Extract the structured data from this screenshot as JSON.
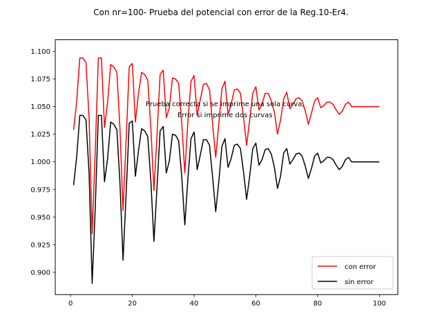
{
  "chart_data": {
    "type": "line",
    "title": "Con nr=100- Prueba del potencial con error de la Reg.10-Er4.",
    "xlabel": "",
    "ylabel": "",
    "xlim": [
      -4.95,
      105.95
    ],
    "ylim": [
      0.8799,
      1.1105
    ],
    "x_ticks": [
      0,
      20,
      40,
      60,
      80,
      100
    ],
    "y_ticks": [
      0.9,
      0.925,
      0.95,
      0.975,
      1.0,
      1.025,
      1.05,
      1.075,
      1.1
    ],
    "grid": false,
    "legend_position": "lower-right",
    "annotations": [
      {
        "text": "Prueba correcta si se imprime una sola curva,",
        "x": 50,
        "y": 1.0505
      },
      {
        "text": "Error si imprime dos curvas",
        "x": 50,
        "y": 1.0405
      }
    ],
    "x": [
      1,
      2,
      3,
      4,
      5,
      6,
      7,
      8,
      9,
      10,
      11,
      12,
      13,
      14,
      15,
      16,
      17,
      18,
      19,
      20,
      21,
      22,
      23,
      24,
      25,
      26,
      27,
      28,
      29,
      30,
      31,
      32,
      33,
      34,
      35,
      36,
      37,
      38,
      39,
      40,
      41,
      42,
      43,
      44,
      45,
      46,
      47,
      48,
      49,
      50,
      51,
      52,
      53,
      54,
      55,
      56,
      57,
      58,
      59,
      60,
      61,
      62,
      63,
      64,
      65,
      66,
      67,
      68,
      69,
      70,
      71,
      72,
      73,
      74,
      75,
      76,
      77,
      78,
      79,
      80,
      81,
      82,
      83,
      84,
      85,
      86,
      87,
      88,
      89,
      90,
      91,
      92,
      93,
      94,
      95,
      96,
      97,
      98,
      99,
      100
    ],
    "series": [
      {
        "name": "con error",
        "color": "#ff0000",
        "values": [
          1.029,
          1.055,
          1.094,
          1.094,
          1.09,
          1.04,
          0.935,
          1.01,
          1.094,
          1.094,
          1.031,
          1.054,
          1.088,
          1.086,
          1.081,
          1.03,
          0.956,
          1.02,
          1.086,
          1.089,
          1.036,
          1.062,
          1.081,
          1.079,
          1.074,
          1.031,
          0.974,
          1.024,
          1.079,
          1.083,
          1.04,
          1.049,
          1.076,
          1.075,
          1.071,
          1.035,
          0.99,
          1.037,
          1.073,
          1.078,
          1.042,
          1.056,
          1.07,
          1.071,
          1.065,
          1.034,
          1.004,
          1.034,
          1.066,
          1.073,
          1.043,
          1.052,
          1.065,
          1.066,
          1.062,
          1.04,
          1.015,
          1.038,
          1.062,
          1.068,
          1.047,
          1.052,
          1.062,
          1.062,
          1.055,
          1.045,
          1.025,
          1.038,
          1.057,
          1.063,
          1.048,
          1.052,
          1.057,
          1.058,
          1.055,
          1.046,
          1.034,
          1.044,
          1.055,
          1.058,
          1.049,
          1.051,
          1.054,
          1.054,
          1.052,
          1.047,
          1.043,
          1.046,
          1.052,
          1.054,
          1.05,
          1.05,
          1.05,
          1.05,
          1.05,
          1.05,
          1.05,
          1.05,
          1.05,
          1.05
        ]
      },
      {
        "name": "sin error",
        "color": "#000000",
        "values": [
          0.979,
          1.005,
          1.042,
          1.042,
          1.038,
          0.99,
          0.89,
          0.958,
          1.042,
          1.042,
          0.982,
          1.003,
          1.036,
          1.034,
          1.029,
          0.981,
          0.911,
          0.971,
          1.035,
          1.037,
          0.987,
          1.01,
          1.03,
          1.028,
          1.023,
          0.983,
          0.928,
          0.977,
          1.028,
          1.032,
          0.99,
          1.001,
          1.025,
          1.024,
          1.019,
          0.987,
          0.943,
          0.985,
          1.021,
          1.027,
          0.993,
          1.006,
          1.02,
          1.02,
          1.015,
          0.986,
          0.955,
          0.982,
          1.014,
          1.021,
          0.995,
          1.003,
          1.015,
          1.016,
          1.012,
          0.991,
          0.966,
          0.987,
          1.012,
          1.017,
          0.997,
          1.002,
          1.011,
          1.012,
          1.007,
          0.995,
          0.976,
          0.987,
          1.008,
          1.012,
          0.998,
          1.002,
          1.007,
          1.008,
          1.005,
          0.996,
          0.985,
          0.994,
          1.005,
          1.008,
          0.999,
          1.001,
          1.004,
          1.004,
          1.002,
          0.997,
          0.993,
          0.996,
          1.002,
          1.004,
          1.0,
          1.0,
          1.0,
          1.0,
          1.0,
          1.0,
          1.0,
          1.0,
          1.0,
          1.0
        ]
      }
    ]
  }
}
